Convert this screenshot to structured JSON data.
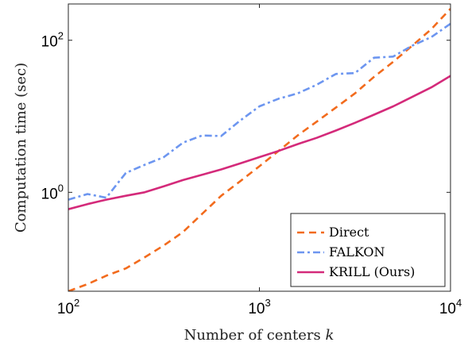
{
  "chart_data": {
    "type": "line",
    "xlabel": "Number of centers",
    "xlabel_var": "k",
    "ylabel": "Computation time (sec)",
    "xscale": "log",
    "yscale": "log",
    "xlim": [
      100,
      10000
    ],
    "ylim": [
      0.05,
      300
    ],
    "x_ticks": [
      {
        "value": 100,
        "base": "10",
        "exp": "2"
      },
      {
        "value": 1000,
        "base": "10",
        "exp": "3"
      },
      {
        "value": 10000,
        "base": "10",
        "exp": "4"
      }
    ],
    "y_ticks": [
      {
        "value": 1,
        "base": "10",
        "exp": "0"
      },
      {
        "value": 100,
        "base": "10",
        "exp": "2"
      }
    ],
    "legend_position": "bottom-right",
    "series": [
      {
        "name": "Direct",
        "color": "#f26b1d",
        "dash": "dashed",
        "points": [
          [
            100,
            0.05
          ],
          [
            126,
            0.062
          ],
          [
            158,
            0.08
          ],
          [
            200,
            0.1
          ],
          [
            251,
            0.14
          ],
          [
            316,
            0.2
          ],
          [
            398,
            0.3
          ],
          [
            501,
            0.52
          ],
          [
            631,
            0.9
          ],
          [
            794,
            1.4
          ],
          [
            1000,
            2.2
          ],
          [
            1259,
            3.5
          ],
          [
            1585,
            5.6
          ],
          [
            1995,
            8.5
          ],
          [
            2512,
            13
          ],
          [
            3162,
            20
          ],
          [
            3981,
            33
          ],
          [
            5012,
            52
          ],
          [
            6310,
            85
          ],
          [
            7943,
            140
          ],
          [
            10000,
            260
          ]
        ]
      },
      {
        "name": "FALKON",
        "color": "#6d96f0",
        "dash": "dashdot",
        "points": [
          [
            100,
            0.8
          ],
          [
            126,
            0.95
          ],
          [
            158,
            0.85
          ],
          [
            200,
            1.8
          ],
          [
            251,
            2.3
          ],
          [
            316,
            2.9
          ],
          [
            398,
            4.5
          ],
          [
            501,
            5.6
          ],
          [
            631,
            5.5
          ],
          [
            794,
            8.8
          ],
          [
            1000,
            13.5
          ],
          [
            1259,
            17
          ],
          [
            1585,
            20
          ],
          [
            1995,
            26
          ],
          [
            2512,
            36
          ],
          [
            3162,
            37
          ],
          [
            3981,
            59
          ],
          [
            5012,
            61
          ],
          [
            6310,
            85
          ],
          [
            7943,
            110
          ],
          [
            10000,
            165
          ]
        ]
      },
      {
        "name": "KRILL (Ours)",
        "color": "#d42a7a",
        "dash": "solid",
        "points": [
          [
            100,
            0.6
          ],
          [
            126,
            0.7
          ],
          [
            158,
            0.8
          ],
          [
            200,
            0.9
          ],
          [
            251,
            1.0
          ],
          [
            316,
            1.2
          ],
          [
            398,
            1.45
          ],
          [
            501,
            1.7
          ],
          [
            631,
            2.0
          ],
          [
            794,
            2.4
          ],
          [
            1000,
            2.9
          ],
          [
            1259,
            3.5
          ],
          [
            1585,
            4.3
          ],
          [
            1995,
            5.2
          ],
          [
            2512,
            6.5
          ],
          [
            3162,
            8.2
          ],
          [
            3981,
            10.5
          ],
          [
            5012,
            13.5
          ],
          [
            6310,
            18
          ],
          [
            7943,
            24
          ],
          [
            10000,
            34
          ]
        ]
      }
    ]
  }
}
